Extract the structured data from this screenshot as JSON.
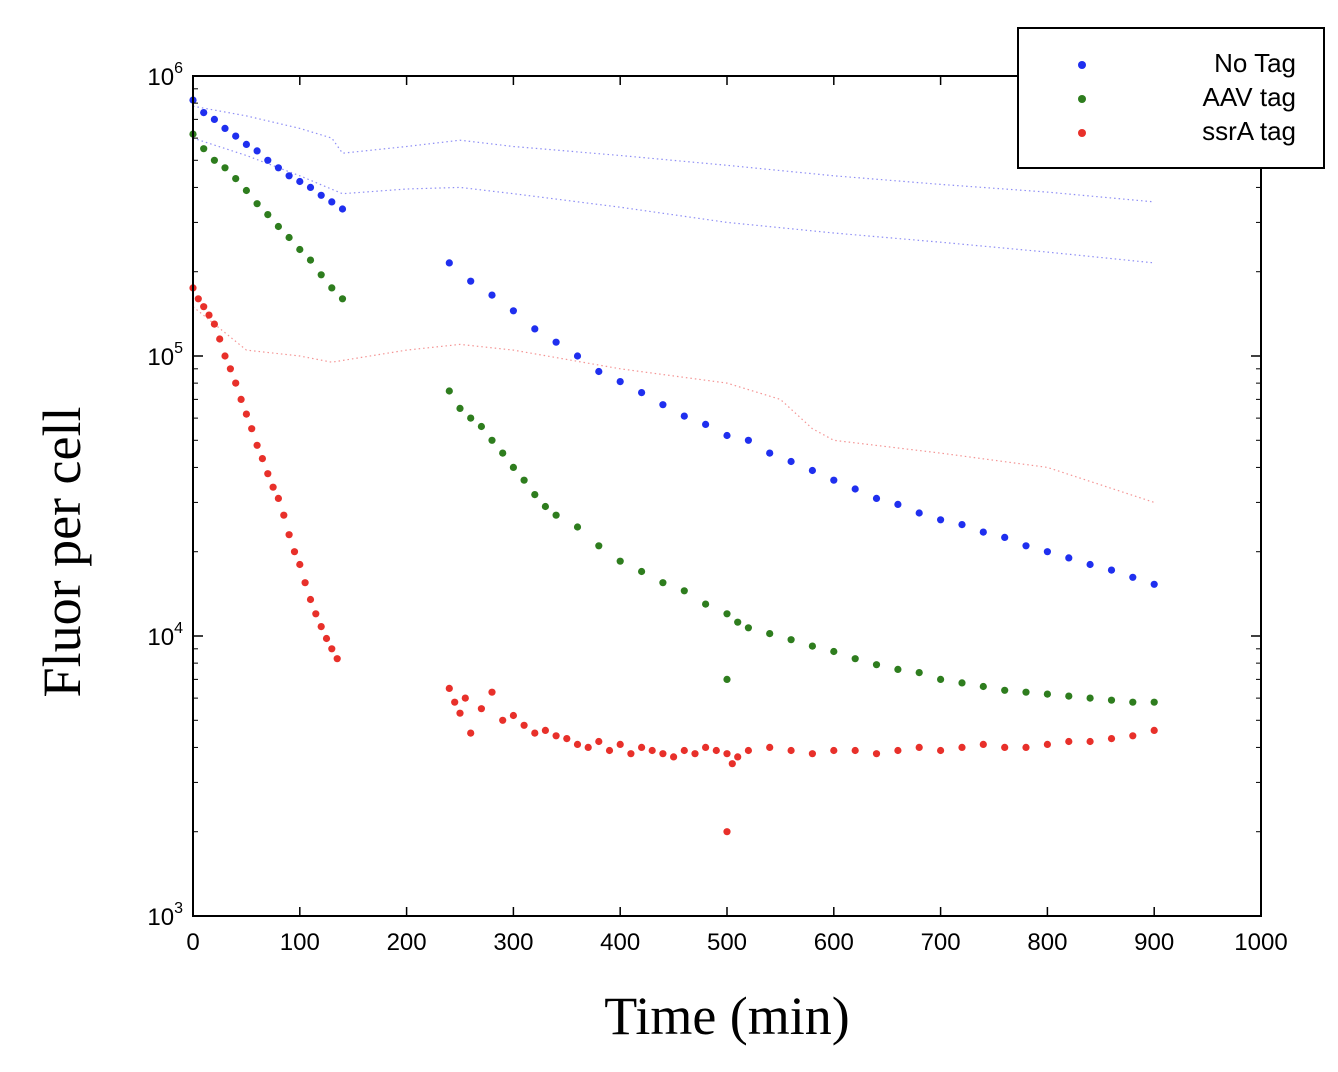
{
  "chart_data": {
    "type": "scatter",
    "xlabel": "Time (min)",
    "ylabel": "Fluor per cell",
    "xlim": [
      0,
      1000
    ],
    "ylim": [
      1000,
      1000000
    ],
    "yscale": "log",
    "x_ticks": [
      "0",
      "100",
      "200",
      "300",
      "400",
      "500",
      "600",
      "700",
      "800",
      "900",
      "1000"
    ],
    "y_ticks": [
      {
        "base": "10",
        "exp": "3",
        "value": 1000
      },
      {
        "base": "10",
        "exp": "4",
        "value": 10000
      },
      {
        "base": "10",
        "exp": "5",
        "value": 100000
      },
      {
        "base": "10",
        "exp": "6",
        "value": 1000000
      }
    ],
    "legend_position": "top-right",
    "series": [
      {
        "name": "No Tag",
        "color": "#1f2fef",
        "points": [
          [
            0,
            820000
          ],
          [
            10,
            740000
          ],
          [
            20,
            700000
          ],
          [
            30,
            650000
          ],
          [
            40,
            610000
          ],
          [
            50,
            570000
          ],
          [
            60,
            540000
          ],
          [
            70,
            500000
          ],
          [
            80,
            470000
          ],
          [
            90,
            440000
          ],
          [
            100,
            420000
          ],
          [
            110,
            400000
          ],
          [
            120,
            375000
          ],
          [
            130,
            355000
          ],
          [
            140,
            335000
          ],
          [
            240,
            215000
          ],
          [
            260,
            185000
          ],
          [
            280,
            165000
          ],
          [
            300,
            145000
          ],
          [
            320,
            125000
          ],
          [
            340,
            112000
          ],
          [
            360,
            100000
          ],
          [
            380,
            88000
          ],
          [
            400,
            81000
          ],
          [
            420,
            74000
          ],
          [
            440,
            67000
          ],
          [
            460,
            61000
          ],
          [
            480,
            57000
          ],
          [
            500,
            52000
          ],
          [
            520,
            50000
          ],
          [
            540,
            45000
          ],
          [
            560,
            42000
          ],
          [
            580,
            39000
          ],
          [
            600,
            36000
          ],
          [
            620,
            33500
          ],
          [
            640,
            31000
          ],
          [
            660,
            29500
          ],
          [
            680,
            27500
          ],
          [
            700,
            26000
          ],
          [
            720,
            25000
          ],
          [
            740,
            23500
          ],
          [
            760,
            22500
          ],
          [
            780,
            21000
          ],
          [
            800,
            20000
          ],
          [
            820,
            19000
          ],
          [
            840,
            18000
          ],
          [
            860,
            17200
          ],
          [
            880,
            16200
          ],
          [
            900,
            15300
          ]
        ]
      },
      {
        "name": "AAV tag",
        "color": "#2e7d1e",
        "points": [
          [
            0,
            620000
          ],
          [
            10,
            550000
          ],
          [
            20,
            500000
          ],
          [
            30,
            470000
          ],
          [
            40,
            430000
          ],
          [
            50,
            390000
          ],
          [
            60,
            350000
          ],
          [
            70,
            320000
          ],
          [
            80,
            290000
          ],
          [
            90,
            265000
          ],
          [
            100,
            240000
          ],
          [
            110,
            220000
          ],
          [
            120,
            195000
          ],
          [
            130,
            175000
          ],
          [
            140,
            160000
          ],
          [
            240,
            75000
          ],
          [
            250,
            65000
          ],
          [
            260,
            60000
          ],
          [
            270,
            56000
          ],
          [
            280,
            50000
          ],
          [
            290,
            45000
          ],
          [
            300,
            40000
          ],
          [
            310,
            36000
          ],
          [
            320,
            32000
          ],
          [
            330,
            29000
          ],
          [
            340,
            27000
          ],
          [
            360,
            24500
          ],
          [
            380,
            21000
          ],
          [
            400,
            18500
          ],
          [
            420,
            17000
          ],
          [
            440,
            15500
          ],
          [
            460,
            14500
          ],
          [
            480,
            13000
          ],
          [
            500,
            12000
          ],
          [
            510,
            11200
          ],
          [
            520,
            10700
          ],
          [
            540,
            10200
          ],
          [
            560,
            9700
          ],
          [
            580,
            9200
          ],
          [
            600,
            8800
          ],
          [
            620,
            8300
          ],
          [
            640,
            7900
          ],
          [
            660,
            7600
          ],
          [
            680,
            7400
          ],
          [
            700,
            7000
          ],
          [
            720,
            6800
          ],
          [
            740,
            6600
          ],
          [
            760,
            6400
          ],
          [
            780,
            6300
          ],
          [
            800,
            6200
          ],
          [
            820,
            6100
          ],
          [
            840,
            6000
          ],
          [
            860,
            5900
          ],
          [
            880,
            5800
          ],
          [
            900,
            5800
          ],
          [
            500,
            7000
          ]
        ]
      },
      {
        "name": "ssrA tag",
        "color": "#e8302a",
        "points": [
          [
            0,
            175000
          ],
          [
            5,
            160000
          ],
          [
            10,
            150000
          ],
          [
            15,
            140000
          ],
          [
            20,
            130000
          ],
          [
            25,
            115000
          ],
          [
            30,
            100000
          ],
          [
            35,
            90000
          ],
          [
            40,
            80000
          ],
          [
            45,
            70000
          ],
          [
            50,
            62000
          ],
          [
            55,
            55000
          ],
          [
            60,
            48000
          ],
          [
            65,
            43000
          ],
          [
            70,
            38000
          ],
          [
            75,
            34000
          ],
          [
            80,
            31000
          ],
          [
            85,
            27000
          ],
          [
            90,
            23000
          ],
          [
            95,
            20000
          ],
          [
            100,
            18000
          ],
          [
            105,
            15500
          ],
          [
            110,
            13500
          ],
          [
            115,
            12000
          ],
          [
            120,
            10800
          ],
          [
            125,
            9800
          ],
          [
            130,
            9000
          ],
          [
            135,
            8300
          ],
          [
            240,
            6500
          ],
          [
            245,
            5800
          ],
          [
            250,
            5300
          ],
          [
            255,
            6000
          ],
          [
            260,
            4500
          ],
          [
            270,
            5500
          ],
          [
            280,
            6300
          ],
          [
            290,
            5000
          ],
          [
            300,
            5200
          ],
          [
            310,
            4800
          ],
          [
            320,
            4500
          ],
          [
            330,
            4600
          ],
          [
            340,
            4400
          ],
          [
            350,
            4300
          ],
          [
            360,
            4100
          ],
          [
            370,
            4000
          ],
          [
            380,
            4200
          ],
          [
            390,
            3900
          ],
          [
            400,
            4100
          ],
          [
            410,
            3800
          ],
          [
            420,
            4000
          ],
          [
            430,
            3900
          ],
          [
            440,
            3800
          ],
          [
            450,
            3700
          ],
          [
            460,
            3900
          ],
          [
            470,
            3800
          ],
          [
            480,
            4000
          ],
          [
            490,
            3900
          ],
          [
            500,
            3800
          ],
          [
            505,
            3500
          ],
          [
            510,
            3700
          ],
          [
            520,
            3900
          ],
          [
            540,
            4000
          ],
          [
            560,
            3900
          ],
          [
            580,
            3800
          ],
          [
            600,
            3900
          ],
          [
            620,
            3900
          ],
          [
            640,
            3800
          ],
          [
            660,
            3900
          ],
          [
            680,
            4000
          ],
          [
            700,
            3900
          ],
          [
            720,
            4000
          ],
          [
            740,
            4100
          ],
          [
            760,
            4000
          ],
          [
            780,
            4000
          ],
          [
            800,
            4100
          ],
          [
            820,
            4200
          ],
          [
            840,
            4200
          ],
          [
            860,
            4300
          ],
          [
            880,
            4400
          ],
          [
            900,
            4600
          ],
          [
            500,
            2000
          ]
        ]
      }
    ],
    "background_traces": [
      {
        "color": "#6a6af2",
        "points": [
          [
            0,
            780000
          ],
          [
            50,
            720000
          ],
          [
            100,
            650000
          ],
          [
            130,
            600000
          ],
          [
            140,
            530000
          ],
          [
            200,
            560000
          ],
          [
            250,
            590000
          ],
          [
            300,
            560000
          ],
          [
            400,
            520000
          ],
          [
            500,
            480000
          ],
          [
            600,
            440000
          ],
          [
            700,
            410000
          ],
          [
            800,
            385000
          ],
          [
            900,
            355000
          ]
        ]
      },
      {
        "color": "#6a6af2",
        "points": [
          [
            0,
            600000
          ],
          [
            50,
            520000
          ],
          [
            100,
            440000
          ],
          [
            140,
            380000
          ],
          [
            200,
            395000
          ],
          [
            250,
            400000
          ],
          [
            300,
            380000
          ],
          [
            400,
            340000
          ],
          [
            500,
            300000
          ],
          [
            600,
            275000
          ],
          [
            700,
            255000
          ],
          [
            800,
            235000
          ],
          [
            900,
            215000
          ]
        ]
      },
      {
        "color": "#f07070",
        "points": [
          [
            0,
            150000
          ],
          [
            50,
            105000
          ],
          [
            100,
            100000
          ],
          [
            130,
            95000
          ],
          [
            200,
            105000
          ],
          [
            250,
            110000
          ],
          [
            300,
            105000
          ],
          [
            400,
            90000
          ],
          [
            500,
            80000
          ],
          [
            550,
            70000
          ],
          [
            580,
            55000
          ],
          [
            600,
            50000
          ],
          [
            700,
            45000
          ],
          [
            800,
            40000
          ],
          [
            900,
            30000
          ]
        ]
      }
    ]
  }
}
